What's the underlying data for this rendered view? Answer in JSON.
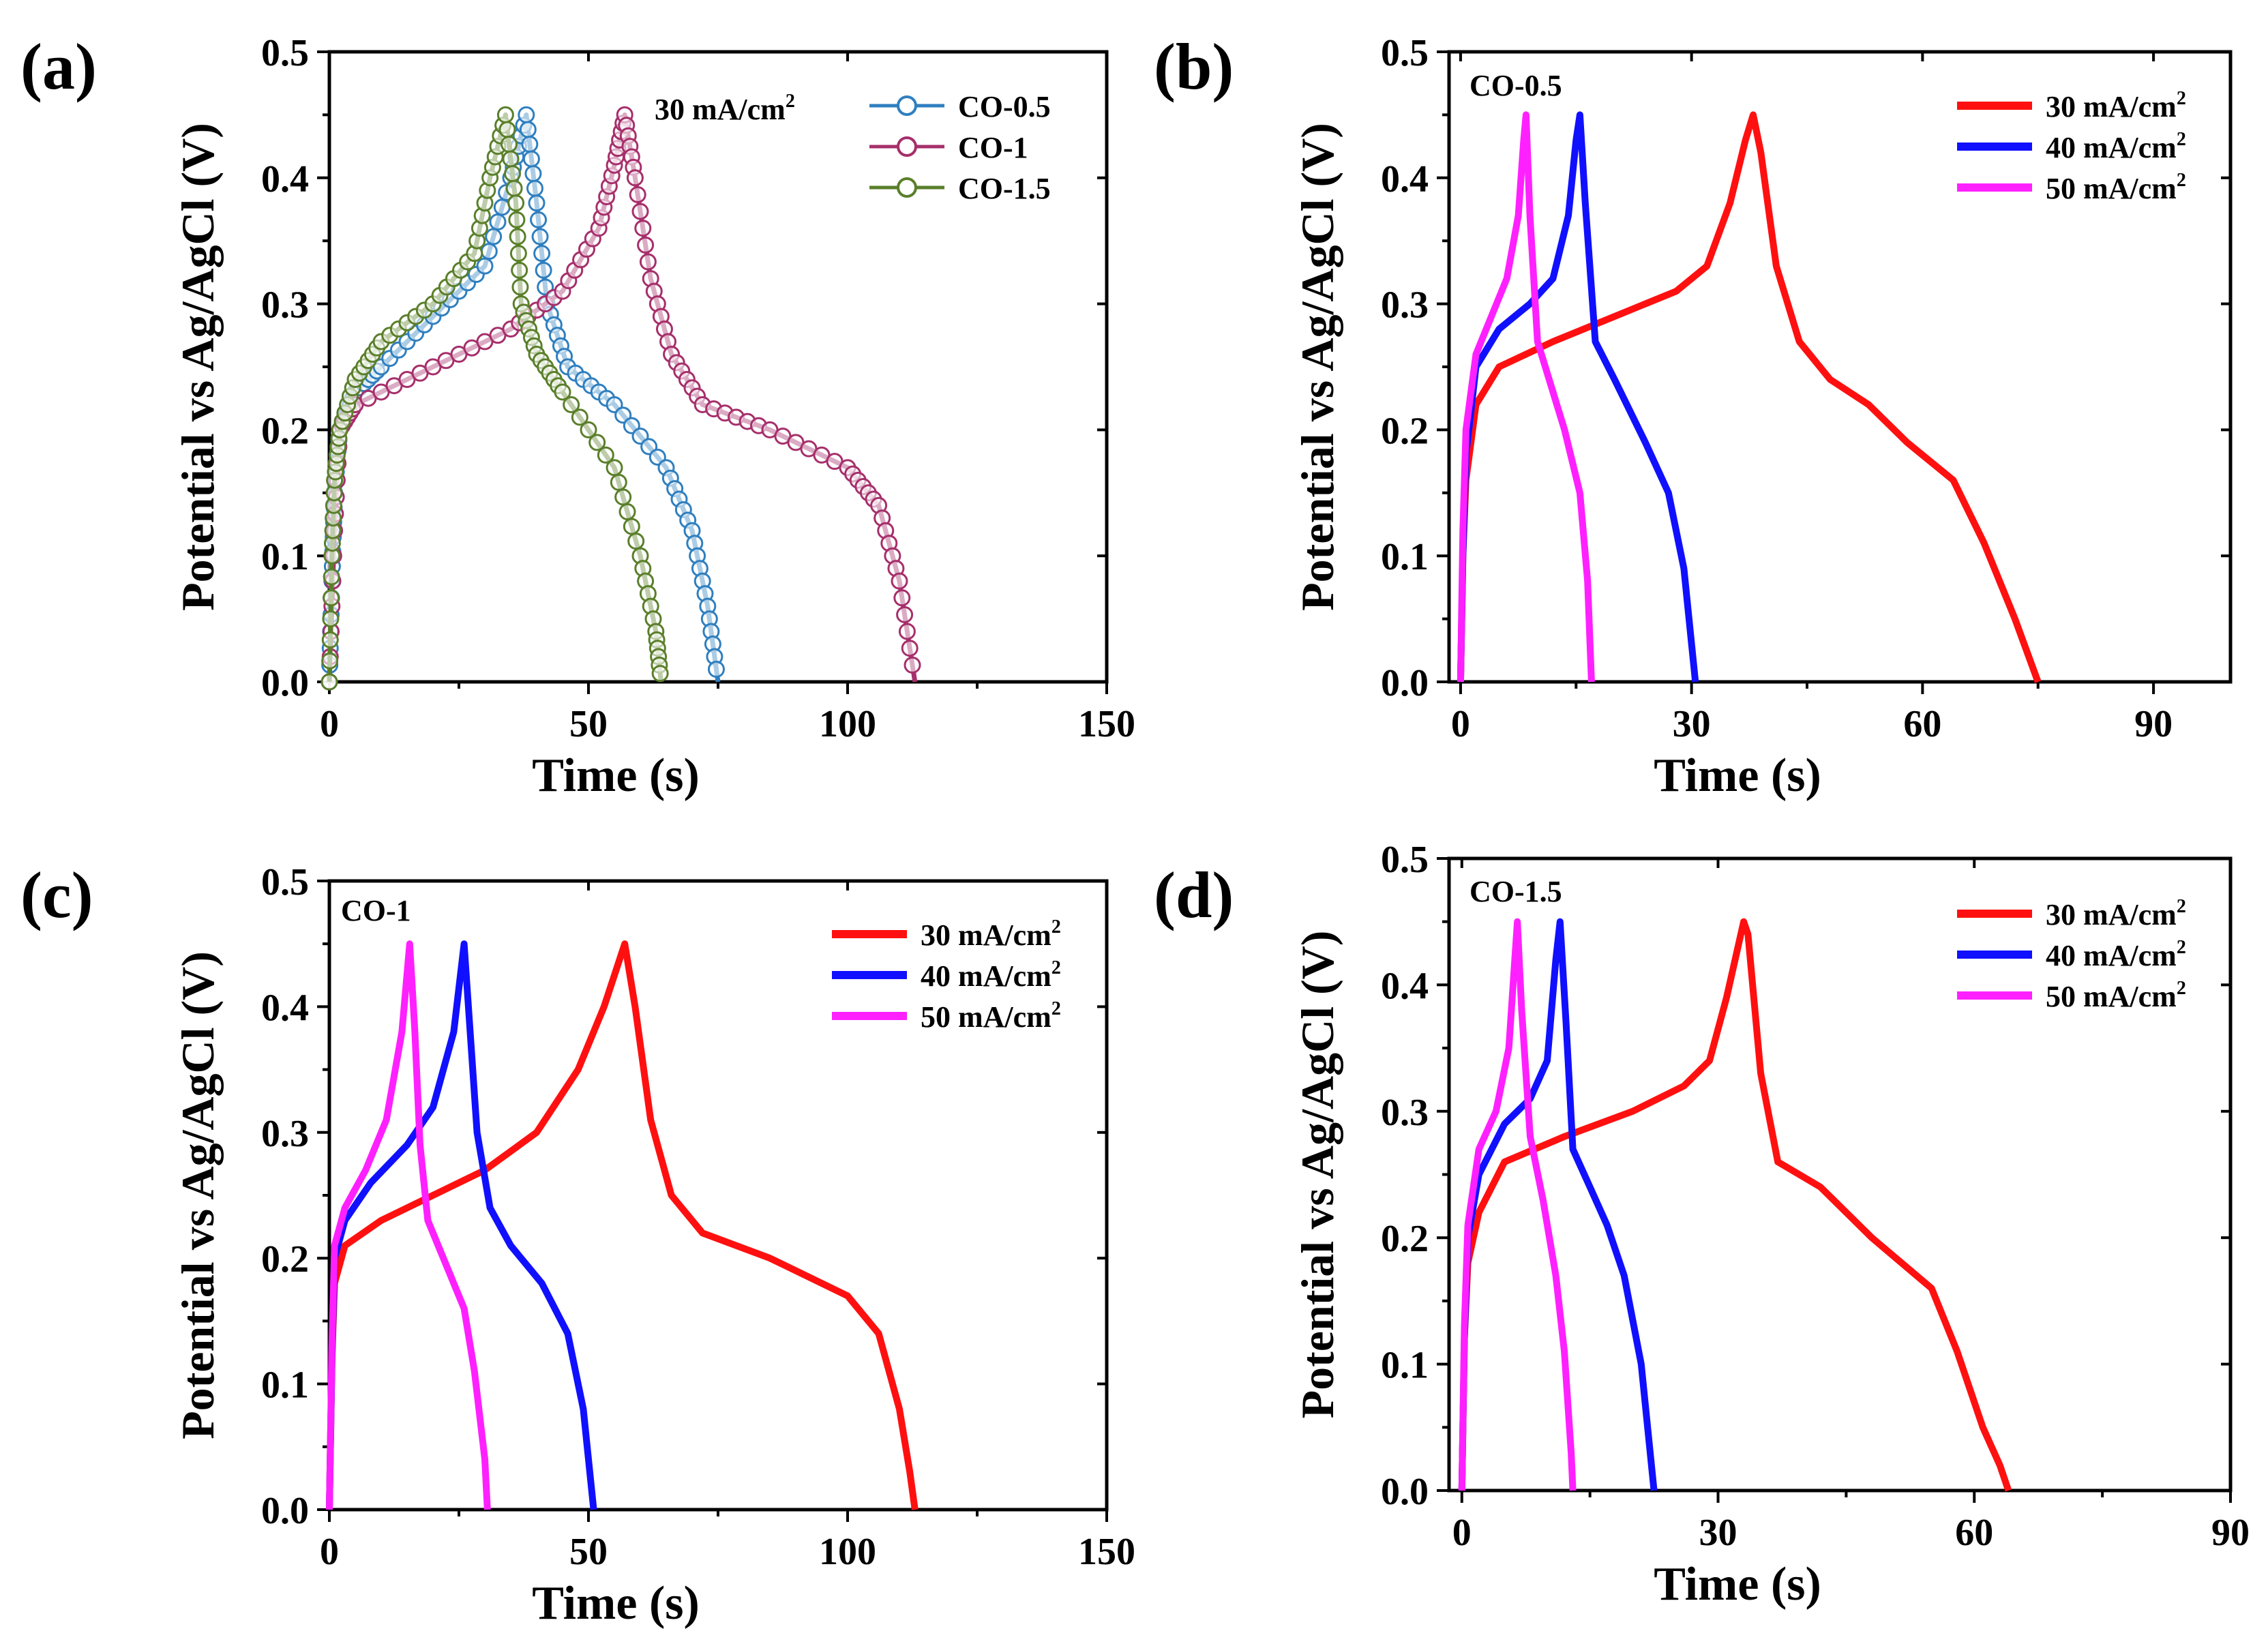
{
  "panels": [
    {
      "panel_label": "(a)",
      "annotation": "30 mA/cm",
      "annotation_sup": "2",
      "legend_style": "markers",
      "series_colors": [
        "#2f7fbf",
        "#a62f6b",
        "#5a7f2a"
      ]
    },
    {
      "panel_label": "(b)",
      "annotation": "CO-0.5",
      "annotation_sup": "",
      "legend_style": "lines",
      "series_colors": [
        "#ff1010",
        "#1010ff",
        "#ff20ff"
      ]
    },
    {
      "panel_label": "(c)",
      "annotation": "CO-1",
      "annotation_sup": "",
      "legend_style": "lines",
      "series_colors": [
        "#ff1010",
        "#1010ff",
        "#ff20ff"
      ]
    },
    {
      "panel_label": "(d)",
      "annotation": "CO-1.5",
      "annotation_sup": "",
      "legend_style": "lines",
      "series_colors": [
        "#ff1010",
        "#1010ff",
        "#ff20ff"
      ]
    }
  ],
  "chart_data": [
    {
      "type": "line",
      "xlabel": "Time (s)",
      "ylabel": "Potential vs Ag/AgCl (V)",
      "xlim": [
        0,
        150
      ],
      "ylim": [
        0,
        0.5
      ],
      "xticks": [
        0,
        50,
        100,
        150
      ],
      "yticks": [
        "0.0",
        "0.1",
        "0.2",
        "0.3",
        "0.4",
        "0.5"
      ],
      "legend_position": "top-right",
      "series": [
        {
          "name": "CO-0.5",
          "points": [
            [
              0,
              0
            ],
            [
              0.5,
              0.08
            ],
            [
              1,
              0.15
            ],
            [
              2,
              0.2
            ],
            [
              5,
              0.23
            ],
            [
              10,
              0.25
            ],
            [
              20,
              0.29
            ],
            [
              30,
              0.33
            ],
            [
              35,
              0.4
            ],
            [
              38,
              0.45
            ],
            [
              40,
              0.38
            ],
            [
              42,
              0.3
            ],
            [
              46,
              0.25
            ],
            [
              55,
              0.22
            ],
            [
              65,
              0.17
            ],
            [
              70,
              0.12
            ],
            [
              73,
              0.06
            ],
            [
              75,
              0
            ]
          ]
        },
        {
          "name": "CO-1",
          "points": [
            [
              0,
              0
            ],
            [
              1,
              0.12
            ],
            [
              2,
              0.2
            ],
            [
              5,
              0.22
            ],
            [
              20,
              0.25
            ],
            [
              35,
              0.28
            ],
            [
              45,
              0.31
            ],
            [
              52,
              0.36
            ],
            [
              55,
              0.41
            ],
            [
              57,
              0.45
            ],
            [
              59,
              0.4
            ],
            [
              62,
              0.32
            ],
            [
              66,
              0.26
            ],
            [
              72,
              0.22
            ],
            [
              85,
              0.2
            ],
            [
              100,
              0.17
            ],
            [
              106,
              0.14
            ],
            [
              110,
              0.08
            ],
            [
              113,
              0
            ]
          ]
        },
        {
          "name": "CO-1.5",
          "points": [
            [
              0,
              0
            ],
            [
              0.5,
              0.1
            ],
            [
              1,
              0.16
            ],
            [
              2,
              0.2
            ],
            [
              5,
              0.24
            ],
            [
              10,
              0.27
            ],
            [
              20,
              0.3
            ],
            [
              28,
              0.34
            ],
            [
              31,
              0.4
            ],
            [
              34,
              0.45
            ],
            [
              36,
              0.38
            ],
            [
              37,
              0.3
            ],
            [
              40,
              0.26
            ],
            [
              45,
              0.23
            ],
            [
              55,
              0.17
            ],
            [
              60,
              0.1
            ],
            [
              63,
              0.04
            ],
            [
              64,
              0
            ]
          ]
        }
      ]
    },
    {
      "type": "line",
      "xlabel": "Time (s)",
      "ylabel": "Potential vs Ag/AgCl (V)",
      "xlim": [
        -1.5,
        100
      ],
      "ylim": [
        0,
        0.5
      ],
      "xticks": [
        0,
        30,
        60,
        90
      ],
      "yticks": [
        "0.0",
        "0.1",
        "0.2",
        "0.3",
        "0.4",
        "0.5"
      ],
      "legend_position": "top-right",
      "series": [
        {
          "name": "30 mA/cm2",
          "points": [
            [
              0,
              0
            ],
            [
              0.3,
              0.1
            ],
            [
              0.7,
              0.16
            ],
            [
              2,
              0.22
            ],
            [
              5,
              0.25
            ],
            [
              12,
              0.27
            ],
            [
              20,
              0.29
            ],
            [
              28,
              0.31
            ],
            [
              32,
              0.33
            ],
            [
              35,
              0.38
            ],
            [
              37,
              0.43
            ],
            [
              38,
              0.45
            ],
            [
              39,
              0.42
            ],
            [
              41,
              0.33
            ],
            [
              44,
              0.27
            ],
            [
              48,
              0.24
            ],
            [
              53,
              0.22
            ],
            [
              58,
              0.19
            ],
            [
              64,
              0.16
            ],
            [
              68,
              0.11
            ],
            [
              72,
              0.05
            ],
            [
              75,
              0
            ]
          ]
        },
        {
          "name": "40 mA/cm2",
          "points": [
            [
              0,
              0
            ],
            [
              0.3,
              0.1
            ],
            [
              0.7,
              0.18
            ],
            [
              2,
              0.25
            ],
            [
              5,
              0.28
            ],
            [
              9,
              0.3
            ],
            [
              12,
              0.32
            ],
            [
              14,
              0.37
            ],
            [
              15,
              0.43
            ],
            [
              15.5,
              0.45
            ],
            [
              16.2,
              0.38
            ],
            [
              17.5,
              0.27
            ],
            [
              20,
              0.24
            ],
            [
              24,
              0.19
            ],
            [
              27,
              0.15
            ],
            [
              29,
              0.09
            ],
            [
              30.5,
              0
            ]
          ]
        },
        {
          "name": "50 mA/cm2",
          "points": [
            [
              0,
              0
            ],
            [
              0.3,
              0.12
            ],
            [
              0.7,
              0.2
            ],
            [
              2,
              0.26
            ],
            [
              4,
              0.29
            ],
            [
              6,
              0.32
            ],
            [
              7.5,
              0.37
            ],
            [
              8.2,
              0.43
            ],
            [
              8.5,
              0.45
            ],
            [
              9,
              0.37
            ],
            [
              10,
              0.27
            ],
            [
              11.5,
              0.24
            ],
            [
              13.5,
              0.2
            ],
            [
              15.5,
              0.15
            ],
            [
              16.5,
              0.08
            ],
            [
              17,
              0
            ]
          ]
        }
      ]
    },
    {
      "type": "line",
      "xlabel": "Time (s)",
      "ylabel": "Potential vs Ag/AgCl (V)",
      "xlim": [
        0,
        150
      ],
      "ylim": [
        0,
        0.5
      ],
      "xticks": [
        0,
        50,
        100,
        150
      ],
      "yticks": [
        "0.0",
        "0.1",
        "0.2",
        "0.3",
        "0.4",
        "0.5"
      ],
      "legend_position": "top-right",
      "series": [
        {
          "name": "30 mA/cm2",
          "points": [
            [
              0,
              0
            ],
            [
              0.5,
              0.12
            ],
            [
              1,
              0.18
            ],
            [
              3,
              0.21
            ],
            [
              10,
              0.23
            ],
            [
              20,
              0.25
            ],
            [
              30,
              0.27
            ],
            [
              40,
              0.3
            ],
            [
              48,
              0.35
            ],
            [
              53,
              0.4
            ],
            [
              57,
              0.45
            ],
            [
              59,
              0.4
            ],
            [
              62,
              0.31
            ],
            [
              66,
              0.25
            ],
            [
              72,
              0.22
            ],
            [
              85,
              0.2
            ],
            [
              100,
              0.17
            ],
            [
              106,
              0.14
            ],
            [
              110,
              0.08
            ],
            [
              112,
              0.03
            ],
            [
              113,
              0
            ]
          ]
        },
        {
          "name": "40 mA/cm2",
          "points": [
            [
              0,
              0
            ],
            [
              0.5,
              0.12
            ],
            [
              1,
              0.2
            ],
            [
              3,
              0.23
            ],
            [
              8,
              0.26
            ],
            [
              15,
              0.29
            ],
            [
              20,
              0.32
            ],
            [
              24,
              0.38
            ],
            [
              26,
              0.45
            ],
            [
              27,
              0.39
            ],
            [
              28.5,
              0.3
            ],
            [
              31,
              0.24
            ],
            [
              35,
              0.21
            ],
            [
              41,
              0.18
            ],
            [
              46,
              0.14
            ],
            [
              49,
              0.08
            ],
            [
              51,
              0
            ]
          ]
        },
        {
          "name": "50 mA/cm2",
          "points": [
            [
              0,
              0
            ],
            [
              0.5,
              0.13
            ],
            [
              1,
              0.21
            ],
            [
              3,
              0.24
            ],
            [
              7,
              0.27
            ],
            [
              11,
              0.31
            ],
            [
              14,
              0.38
            ],
            [
              15.5,
              0.45
            ],
            [
              16.5,
              0.38
            ],
            [
              17.5,
              0.29
            ],
            [
              19,
              0.23
            ],
            [
              22,
              0.2
            ],
            [
              26,
              0.16
            ],
            [
              28,
              0.11
            ],
            [
              30,
              0.04
            ],
            [
              30.5,
              0
            ]
          ]
        }
      ]
    },
    {
      "type": "line",
      "xlabel": "Time (s)",
      "ylabel": "Potential vs Ag/AgCl (V)",
      "xlim": [
        -1.5,
        90
      ],
      "ylim": [
        0,
        0.5
      ],
      "xticks": [
        0,
        30,
        60,
        90
      ],
      "yticks": [
        "0.0",
        "0.1",
        "0.2",
        "0.3",
        "0.4",
        "0.5"
      ],
      "legend_position": "top-right",
      "series": [
        {
          "name": "30 mA/cm2",
          "points": [
            [
              0,
              0
            ],
            [
              0.3,
              0.12
            ],
            [
              0.7,
              0.18
            ],
            [
              2,
              0.22
            ],
            [
              5,
              0.26
            ],
            [
              12,
              0.28
            ],
            [
              20,
              0.3
            ],
            [
              26,
              0.32
            ],
            [
              29,
              0.34
            ],
            [
              31,
              0.39
            ],
            [
              33,
              0.45
            ],
            [
              33.5,
              0.44
            ],
            [
              35,
              0.33
            ],
            [
              37,
              0.26
            ],
            [
              42,
              0.24
            ],
            [
              48,
              0.2
            ],
            [
              55,
              0.16
            ],
            [
              58,
              0.11
            ],
            [
              61,
              0.05
            ],
            [
              63,
              0.02
            ],
            [
              64,
              0
            ]
          ]
        },
        {
          "name": "40 mA/cm2",
          "points": [
            [
              0,
              0
            ],
            [
              0.3,
              0.12
            ],
            [
              0.7,
              0.2
            ],
            [
              2,
              0.25
            ],
            [
              5,
              0.29
            ],
            [
              8,
              0.31
            ],
            [
              10,
              0.34
            ],
            [
              11,
              0.42
            ],
            [
              11.5,
              0.45
            ],
            [
              12.2,
              0.37
            ],
            [
              13,
              0.27
            ],
            [
              15,
              0.24
            ],
            [
              17,
              0.21
            ],
            [
              19,
              0.17
            ],
            [
              21,
              0.1
            ],
            [
              22.5,
              0
            ]
          ]
        },
        {
          "name": "50 mA/cm2",
          "points": [
            [
              0,
              0
            ],
            [
              0.3,
              0.13
            ],
            [
              0.7,
              0.21
            ],
            [
              2,
              0.27
            ],
            [
              4,
              0.3
            ],
            [
              5.5,
              0.35
            ],
            [
              6.2,
              0.42
            ],
            [
              6.5,
              0.45
            ],
            [
              7,
              0.38
            ],
            [
              8,
              0.28
            ],
            [
              9.5,
              0.23
            ],
            [
              11,
              0.17
            ],
            [
              12,
              0.11
            ],
            [
              12.8,
              0.03
            ],
            [
              13,
              0
            ]
          ]
        }
      ]
    }
  ]
}
